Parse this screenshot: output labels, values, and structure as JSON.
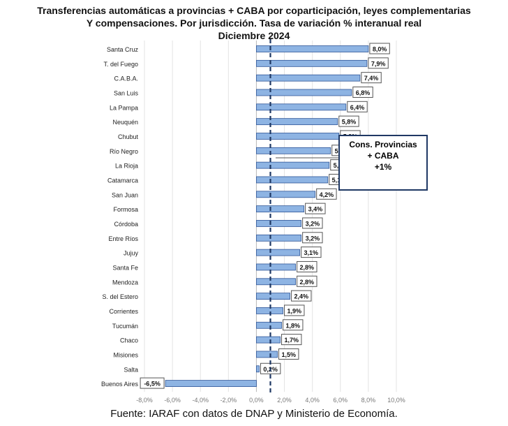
{
  "chart_data": {
    "type": "bar",
    "orientation": "horizontal",
    "title": [
      "Transferencias automáticas a provincias + CABA por coparticipación, leyes complementarias",
      "Y compensaciones. Por jurisdicción. Tasa de variación % interanual real",
      "Diciembre 2024"
    ],
    "categories": [
      "Santa Cruz",
      "T. del Fuego",
      "C.A.B.A.",
      "San Luis",
      "La Pampa",
      "Neuquén",
      "Chubut",
      "Río Negro",
      "La Rioja",
      "Catamarca",
      "San Juan",
      "Formosa",
      "Córdoba",
      "Entre Ríos",
      "Jujuy",
      "Santa Fe",
      "Mendoza",
      "S. del Estero",
      "Corrientes",
      "Tucumán",
      "Chaco",
      "Misiones",
      "Salta",
      "Buenos Aires"
    ],
    "values": [
      8.0,
      7.9,
      7.4,
      6.8,
      6.4,
      5.8,
      5.9,
      5.3,
      5.2,
      5.1,
      4.2,
      3.4,
      3.2,
      3.2,
      3.1,
      2.8,
      2.8,
      2.4,
      1.9,
      1.8,
      1.7,
      1.5,
      0.2,
      -6.5
    ],
    "data_labels": [
      "8,0%",
      "7,9%",
      "7,4%",
      "6,8%",
      "6,4%",
      "5,8%",
      "5,9%",
      "5,3%",
      "5,2%",
      "5,1%",
      "4,2%",
      "3,4%",
      "3,2%",
      "3,2%",
      "3,1%",
      "2,8%",
      "2,8%",
      "2,4%",
      "1,9%",
      "1,8%",
      "1,7%",
      "1,5%",
      "0,2%",
      "-6,5%"
    ],
    "xlim": [
      -8,
      10
    ],
    "x_ticks": [
      -8,
      -6,
      -4,
      -2,
      0,
      2,
      4,
      6,
      8,
      10
    ],
    "x_tick_labels": [
      "-8,0%",
      "-6,0%",
      "-4,0%",
      "-2,0%",
      "0,0%",
      "2,0%",
      "4,0%",
      "6,0%",
      "8,0%",
      "10,0%"
    ],
    "reference_line": {
      "value": 1,
      "style": "dashed",
      "color": "#1f3864"
    },
    "annotation": [
      "Cons. Provincias",
      "+ CABA",
      "+1%"
    ],
    "grid": "vertical",
    "bar_color": "#8eb4e3",
    "bar_edge": "#2f5597"
  },
  "source": "Fuente: IARAF con datos de DNAP y Ministerio de Economía."
}
